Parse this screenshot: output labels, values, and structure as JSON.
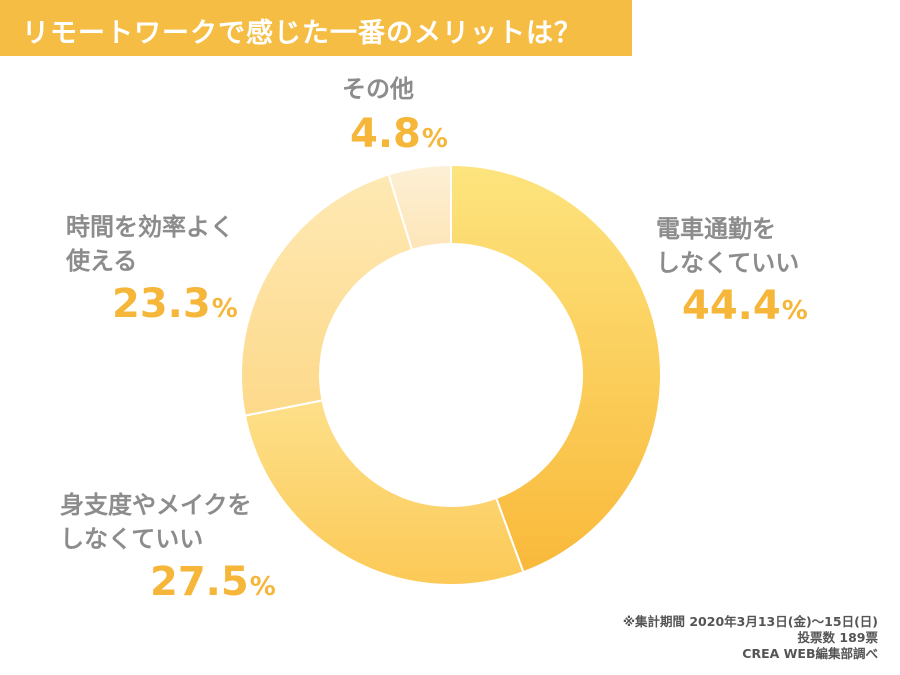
{
  "title": "リモートワークで感じた一番のメリットは？",
  "colors": {
    "title_bg": "#f6bd45",
    "label_text": "#8c8c8c",
    "percent_text": "#f5b63a"
  },
  "chart_data": {
    "type": "pie",
    "variant": "donut",
    "unit": "%",
    "slices": [
      {
        "label_lines": [
          "電車通勤を",
          "しなくていい"
        ],
        "value": 44.4,
        "value_text": "44.4",
        "color": "#fbc946"
      },
      {
        "label_lines": [
          "身支度やメイクを",
          "しなくていい"
        ],
        "value": 27.5,
        "value_text": "27.5",
        "color": "#fcd873"
      },
      {
        "label_lines": [
          "時間を効率よく",
          "使える"
        ],
        "value": 23.3,
        "value_text": "23.3",
        "color": "#fde29f"
      },
      {
        "label_lines": [
          "その他"
        ],
        "value": 4.8,
        "value_text": "4.8",
        "color": "#fdebc8"
      }
    ]
  },
  "footnote": {
    "line1": "※集計期間 2020年3月13日(金)～15日(日)",
    "line2": "投票数 189票",
    "line3": "CREA WEB編集部調べ"
  }
}
